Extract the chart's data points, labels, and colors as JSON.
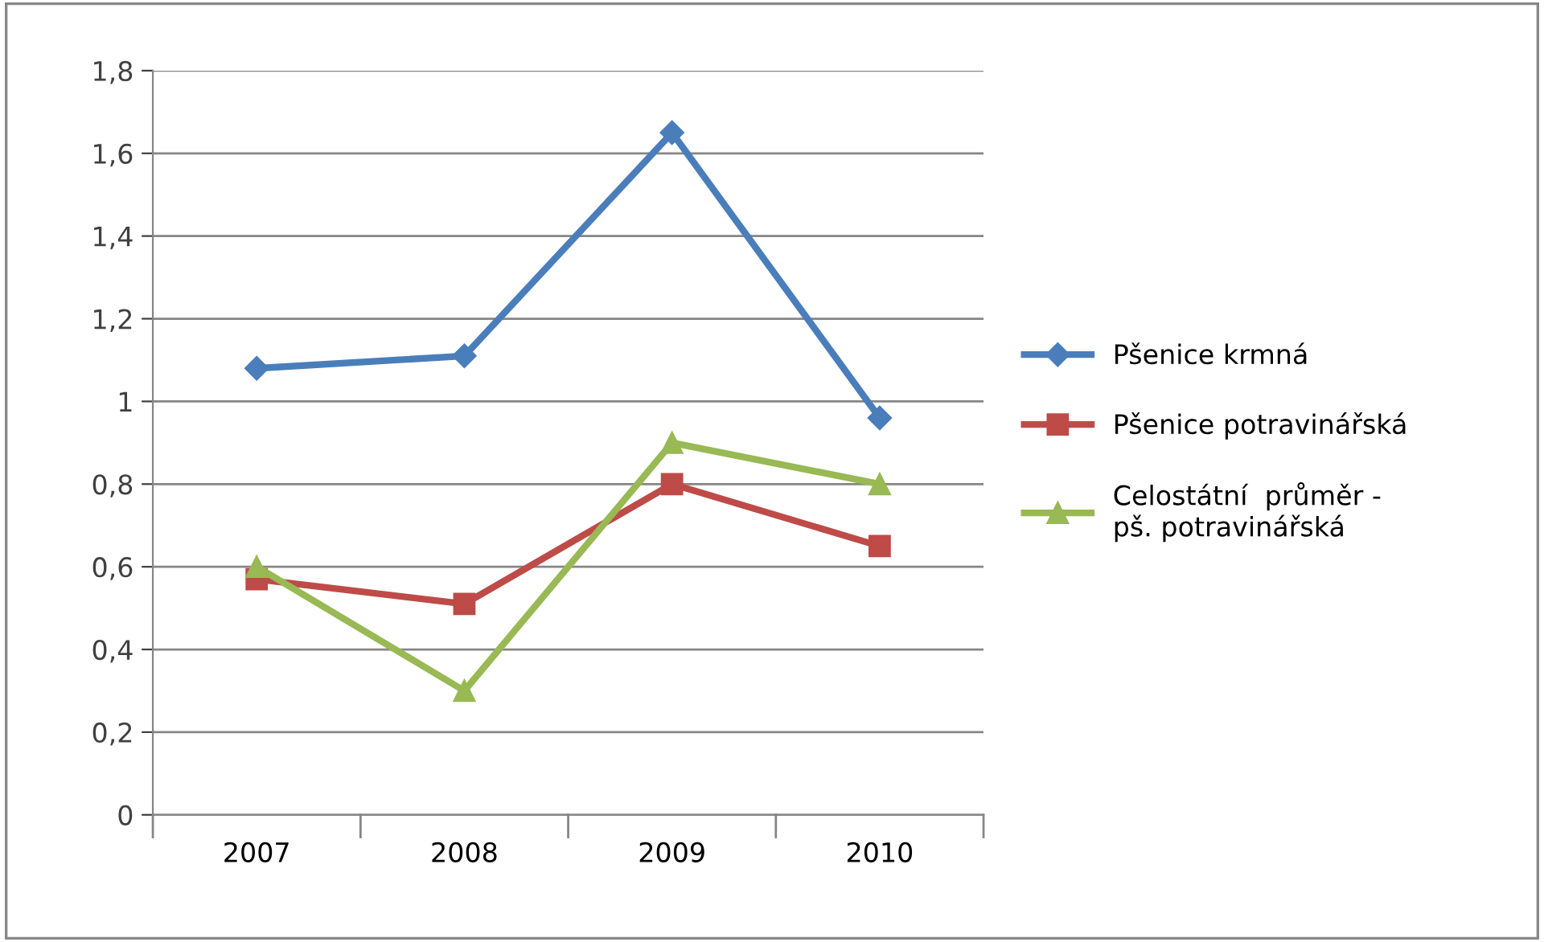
{
  "chart_data": {
    "type": "line",
    "categories": [
      "2007",
      "2008",
      "2009",
      "2010"
    ],
    "series": [
      {
        "name": "Pšenice krmná",
        "color": "#4a7ebb",
        "marker": "diamond",
        "values": [
          1.08,
          1.11,
          1.65,
          0.96
        ]
      },
      {
        "name": "Pšenice potravinářská",
        "color": "#be4b48",
        "marker": "square",
        "values": [
          0.57,
          0.51,
          0.8,
          0.65
        ]
      },
      {
        "name": "Celostátní  průměr -\npš. potravinářská",
        "color": "#98b954",
        "marker": "triangle",
        "values": [
          0.6,
          0.3,
          0.9,
          0.8
        ]
      }
    ],
    "ylim": [
      0,
      1.8
    ],
    "yticks": [
      0,
      {
        "value": 0.2,
        "label": "0,2"
      },
      {
        "value": 0.4,
        "label": "0,4"
      },
      {
        "value": 0.6,
        "label": "0,6"
      },
      {
        "value": 0.8,
        "label": "0,8"
      },
      1,
      {
        "value": 1.2,
        "label": "1,2"
      },
      {
        "value": 1.4,
        "label": "1,4"
      },
      {
        "value": 1.6,
        "label": "1,6"
      },
      {
        "value": 1.8,
        "label": "1,8"
      }
    ],
    "grid": "y",
    "legend": "right",
    "line_style": "solid"
  }
}
